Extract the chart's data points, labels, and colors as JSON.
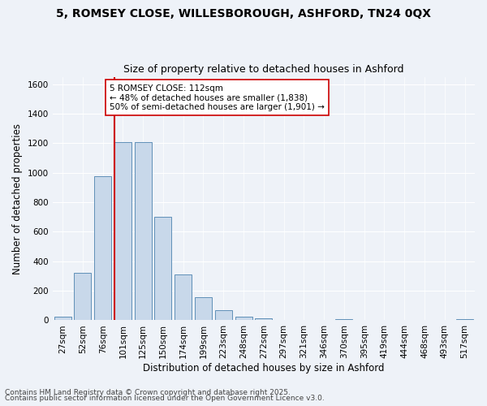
{
  "title_line1": "5, ROMSEY CLOSE, WILLESBOROUGH, ASHFORD, TN24 0QX",
  "title_line2": "Size of property relative to detached houses in Ashford",
  "xlabel": "Distribution of detached houses by size in Ashford",
  "ylabel": "Number of detached properties",
  "categories": [
    "27sqm",
    "52sqm",
    "76sqm",
    "101sqm",
    "125sqm",
    "150sqm",
    "174sqm",
    "199sqm",
    "223sqm",
    "248sqm",
    "272sqm",
    "297sqm",
    "321sqm",
    "346sqm",
    "370sqm",
    "395sqm",
    "419sqm",
    "444sqm",
    "468sqm",
    "493sqm",
    "517sqm"
  ],
  "values": [
    25,
    320,
    975,
    1205,
    1205,
    700,
    310,
    155,
    70,
    22,
    14,
    0,
    0,
    0,
    10,
    0,
    0,
    0,
    0,
    0,
    8
  ],
  "bar_color": "#c8d8ea",
  "bar_edge_color": "#6090b8",
  "vline_color": "#cc0000",
  "ylim": [
    0,
    1650
  ],
  "yticks": [
    0,
    200,
    400,
    600,
    800,
    1000,
    1200,
    1400,
    1600
  ],
  "annotation_text": "5 ROMSEY CLOSE: 112sqm\n← 48% of detached houses are smaller (1,838)\n50% of semi-detached houses are larger (1,901) →",
  "annotation_box_color": "#ffffff",
  "annotation_box_edge": "#cc0000",
  "footer_line1": "Contains HM Land Registry data © Crown copyright and database right 2025.",
  "footer_line2": "Contains public sector information licensed under the Open Government Licence v3.0.",
  "bg_color": "#eef2f8",
  "grid_color": "#ffffff",
  "title_fontsize": 10,
  "subtitle_fontsize": 9,
  "axis_label_fontsize": 8.5,
  "tick_fontsize": 7.5,
  "footer_fontsize": 6.5,
  "annot_fontsize": 7.5
}
